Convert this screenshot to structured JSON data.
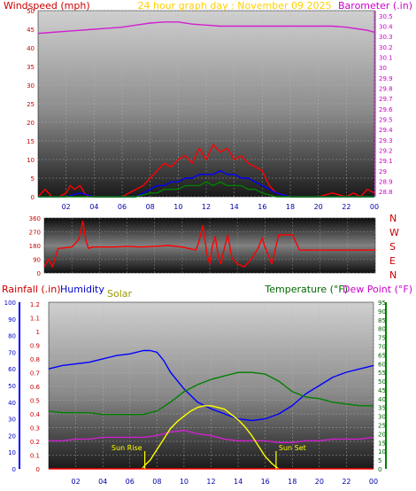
{
  "chart_data": [
    {
      "type": "line",
      "panel": "wind-barometer",
      "title": "24 hour graph day : November 09 2025",
      "left_label": "Windspeed (mph)",
      "right_label": "Barometer (.in)",
      "left_ticks": [
        "0",
        "5",
        "10",
        "15",
        "20",
        "25",
        "30",
        "35",
        "40",
        "45",
        "50"
      ],
      "right_ticks": [
        "28.8",
        "28.9",
        "29",
        "29.1",
        "29.2",
        "29.3",
        "29.4",
        "29.5",
        "29.6",
        "29.7",
        "29.8",
        "29.9",
        "30",
        "30.1",
        "30.2",
        "30.3",
        "30.4",
        "30.5"
      ],
      "x_ticks": [
        "02",
        "04",
        "06",
        "08",
        "10",
        "12",
        "14",
        "16",
        "18",
        "20",
        "22",
        "00"
      ],
      "ylim_left": [
        0,
        50
      ],
      "ylim_right": [
        28.75,
        30.55
      ],
      "xlim": [
        0,
        24
      ],
      "series": [
        {
          "key": "barometer",
          "color": "#d020d0",
          "x": [
            0,
            1,
            2,
            3,
            4,
            5,
            6,
            7,
            8,
            9,
            10,
            11,
            12,
            13,
            14,
            15,
            16,
            17,
            18,
            19,
            20,
            21,
            22,
            23,
            23.5,
            24
          ],
          "values": [
            30.33,
            30.34,
            30.35,
            30.36,
            30.37,
            30.38,
            30.39,
            30.41,
            30.43,
            30.44,
            30.44,
            30.42,
            30.41,
            30.4,
            30.4,
            30.4,
            30.4,
            30.4,
            30.4,
            30.4,
            30.4,
            30.4,
            30.39,
            30.37,
            30.36,
            30.34
          ]
        },
        {
          "key": "wind_gust",
          "color": "#ff0000",
          "x": [
            0,
            0.5,
            1,
            1.5,
            2,
            2.3,
            2.6,
            3,
            3.3,
            3.6,
            4,
            4.5,
            5,
            5.5,
            6,
            6.5,
            7,
            7.5,
            8,
            8.5,
            9,
            9.5,
            10,
            10.5,
            11,
            11.5,
            12,
            12.5,
            13,
            13.5,
            14,
            14.5,
            15,
            15.5,
            16,
            16.5,
            17,
            18,
            19,
            20,
            21,
            22,
            22.5,
            23,
            23.5,
            24
          ],
          "values": [
            0,
            2,
            0,
            0,
            1,
            3,
            2,
            3,
            1,
            0,
            0,
            0,
            0,
            0,
            0,
            1,
            2,
            3,
            5,
            7,
            9,
            8,
            10,
            11,
            9,
            13,
            10,
            14,
            12,
            13,
            10,
            11,
            9,
            8,
            7,
            3,
            1,
            0,
            0,
            0,
            1,
            0,
            1,
            0,
            2,
            1
          ]
        },
        {
          "key": "wind_avg",
          "color": "#0000ff",
          "x": [
            0,
            1,
            2,
            3,
            4,
            5,
            6,
            7,
            7.5,
            8,
            8.5,
            9,
            9.5,
            10,
            10.5,
            11,
            11.5,
            12,
            12.5,
            13,
            13.5,
            14,
            14.5,
            15,
            15.5,
            16,
            16.5,
            17,
            18,
            19,
            20,
            21,
            22,
            23,
            24
          ],
          "values": [
            0,
            0,
            0,
            1,
            0,
            0,
            0,
            0,
            1,
            2,
            3,
            3,
            4,
            4,
            5,
            5,
            6,
            6,
            6,
            7,
            6,
            6,
            5,
            5,
            4,
            3,
            2,
            1,
            0,
            0,
            0,
            0,
            0,
            0,
            0
          ]
        },
        {
          "key": "wind_low",
          "color": "#008000",
          "x": [
            0,
            1,
            2,
            3,
            4,
            5,
            6,
            7,
            8,
            8.5,
            9,
            9.5,
            10,
            10.5,
            11,
            11.5,
            12,
            12.5,
            13,
            13.5,
            14,
            14.5,
            15,
            15.5,
            16,
            17,
            18,
            19,
            20,
            21,
            22,
            23,
            24
          ],
          "values": [
            0,
            0,
            0,
            0,
            0,
            0,
            0,
            0,
            1,
            1,
            2,
            2,
            2,
            3,
            3,
            3,
            4,
            3,
            4,
            3,
            3,
            3,
            2,
            2,
            1,
            0,
            0,
            0,
            0,
            0,
            0,
            0,
            0
          ]
        }
      ]
    },
    {
      "type": "line",
      "panel": "wind-direction",
      "left_ticks": [
        "0",
        "90",
        "180",
        "270",
        "360"
      ],
      "right_ticks": [
        "N",
        "E",
        "S",
        "W",
        "N"
      ],
      "ylim": [
        0,
        360
      ],
      "xlim": [
        0,
        24
      ],
      "series": [
        {
          "key": "direction",
          "color": "#ff0000",
          "x": [
            0,
            0.3,
            0.6,
            1,
            2,
            2.5,
            2.8,
            3,
            3.2,
            3.5,
            4,
            5,
            6,
            7,
            8,
            9,
            10,
            10.5,
            11,
            11.2,
            11.5,
            11.8,
            12,
            12.2,
            12.4,
            12.6,
            12.8,
            13,
            13.3,
            13.6,
            14,
            14.5,
            15,
            15.5,
            15.8,
            16,
            16.5,
            17,
            17.5,
            18,
            18.5,
            19,
            20,
            21,
            22,
            23,
            24
          ],
          "values": [
            40,
            90,
            40,
            160,
            170,
            220,
            340,
            220,
            160,
            170,
            170,
            170,
            175,
            170,
            175,
            180,
            170,
            160,
            150,
            200,
            310,
            120,
            60,
            180,
            240,
            120,
            60,
            140,
            250,
            100,
            60,
            40,
            90,
            160,
            230,
            170,
            60,
            250,
            250,
            250,
            150,
            150,
            150,
            150,
            150,
            150,
            150
          ]
        }
      ]
    },
    {
      "type": "line",
      "panel": "temperature-humidity",
      "left_label_rain": "Rainfall (.in)",
      "left_label_humidity": "Humidity",
      "solar_label": "Solar",
      "right_label_temp": "Temperature (°F)",
      "right_label_dew": "Dew Point (°F)",
      "humidity_ticks": [
        "0",
        "10",
        "20",
        "30",
        "40",
        "50",
        "60",
        "70",
        "80",
        "90",
        "100"
      ],
      "rain_ticks": [
        "0",
        "0.1",
        "0.2",
        "0.3",
        "0.4",
        "0.5",
        "0.6",
        "0.7",
        "0.8",
        "0.9",
        "1",
        "1.1",
        "1.2"
      ],
      "temp_ticks": [
        "0",
        "5",
        "10",
        "15",
        "20",
        "25",
        "30",
        "35",
        "40",
        "45",
        "50",
        "55",
        "60",
        "65",
        "70",
        "75",
        "80",
        "85",
        "90",
        "95"
      ],
      "x_ticks": [
        "02",
        "04",
        "06",
        "08",
        "10",
        "12",
        "14",
        "16",
        "18",
        "20",
        "22",
        "00"
      ],
      "ylim_humidity": [
        0,
        100
      ],
      "ylim_temp": [
        0,
        95
      ],
      "xlim": [
        0,
        24
      ],
      "annotations": [
        {
          "text": "Sun Rise",
          "x": 7.1
        },
        {
          "text": "Sun Set",
          "x": 16.8
        }
      ],
      "series": [
        {
          "key": "humidity",
          "color": "#0000ff",
          "x": [
            0,
            1,
            2,
            3,
            4,
            5,
            6,
            7,
            7.5,
            8,
            8.5,
            9,
            10,
            11,
            12,
            13,
            14,
            15,
            16,
            17,
            18,
            19,
            20,
            21,
            22,
            23,
            24
          ],
          "values": [
            60,
            62,
            63,
            64,
            66,
            68,
            69,
            71,
            71,
            70,
            65,
            58,
            48,
            40,
            36,
            33,
            30,
            29,
            30,
            33,
            38,
            45,
            50,
            55,
            58,
            60,
            62
          ]
        },
        {
          "key": "temperature",
          "color": "#008000",
          "x": [
            0,
            1,
            2,
            3,
            4,
            5,
            6,
            7,
            8,
            9,
            10,
            11,
            12,
            13,
            14,
            15,
            16,
            17,
            18,
            19,
            20,
            21,
            22,
            23,
            24
          ],
          "values": [
            33,
            32,
            32,
            32,
            31,
            31,
            31,
            31,
            33,
            38,
            44,
            48,
            51,
            53,
            55,
            55,
            54,
            50,
            44,
            41,
            40,
            38,
            37,
            36,
            36
          ]
        },
        {
          "key": "dew_point",
          "color": "#d020d0",
          "x": [
            0,
            1,
            2,
            3,
            4,
            5,
            6,
            7,
            8,
            9,
            10,
            11,
            12,
            13,
            14,
            15,
            16,
            17,
            18,
            19,
            20,
            21,
            22,
            23,
            24
          ],
          "values": [
            16,
            16,
            17,
            17,
            18,
            18,
            18,
            18,
            19,
            21,
            22,
            20,
            19,
            17,
            16,
            16,
            16,
            15,
            15,
            16,
            16,
            17,
            17,
            17,
            18
          ]
        },
        {
          "key": "solar",
          "color": "#ffff00",
          "x": [
            6.9,
            7.1,
            7.5,
            8,
            8.5,
            9,
            9.5,
            10,
            10.5,
            11,
            11.5,
            12,
            12.5,
            13,
            13.5,
            14,
            14.5,
            15,
            15.5,
            16,
            16.5,
            16.8,
            17
          ],
          "values": [
            0,
            2,
            5,
            11,
            17,
            23,
            27,
            30,
            33,
            35,
            36,
            36,
            35,
            34,
            31,
            28,
            24,
            19,
            13,
            7,
            3,
            1,
            0
          ]
        },
        {
          "key": "rain",
          "color": "#ff0000",
          "x": [
            0,
            24
          ],
          "values": [
            0,
            0
          ]
        }
      ]
    }
  ]
}
